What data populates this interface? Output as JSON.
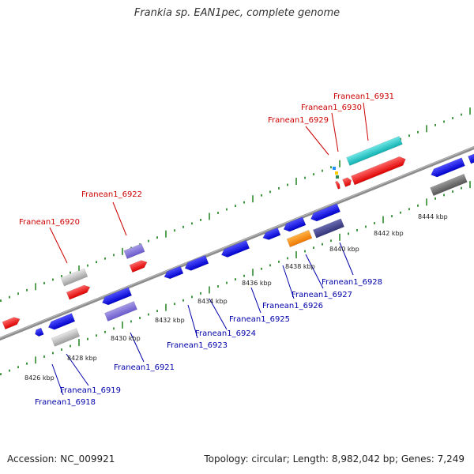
{
  "title": "Frankia sp. EAN1pec, complete genome",
  "footer": {
    "accession": "Accession: NC_009921",
    "summary": "Topology: circular; Length: 8,982,042 bp; Genes: 7,249"
  },
  "colors": {
    "forward_label": "#cc0000",
    "reverse_label": "#0000aa",
    "backbone": "#8c8c8c",
    "tick": "#2e8b2e"
  },
  "kbp_labels": [
    "8426 kbp",
    "8428 kbp",
    "8430 kbp",
    "8432 kbp",
    "8434 kbp",
    "8436 kbp",
    "8438 kbp",
    "8440 kbp",
    "8442 kbp",
    "8444 kbp"
  ],
  "forward_labels": [
    "Franean1_6920",
    "Franean1_6922",
    "Franean1_6929",
    "Franean1_6930",
    "Franean1_6931"
  ],
  "reverse_labels": [
    "Franean1_6918",
    "Franean1_6919",
    "Franean1_6921",
    "Franean1_6923",
    "Franean1_6924",
    "Franean1_6925",
    "Franean1_6926",
    "Franean1_6927",
    "Franean1_6928"
  ]
}
